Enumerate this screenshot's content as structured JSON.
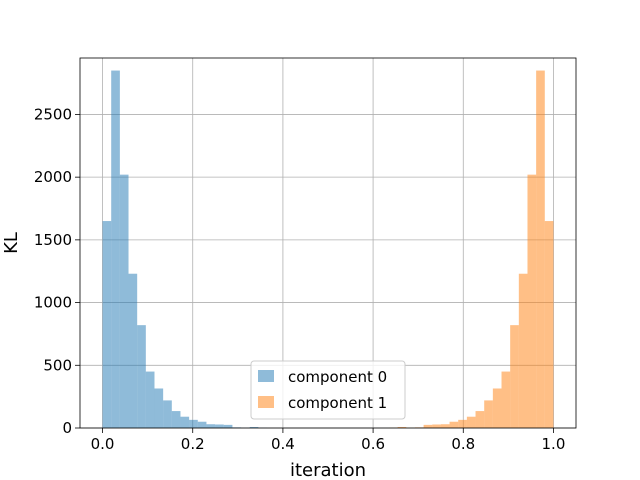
{
  "chart_data": {
    "type": "histogram",
    "xlabel": "iteration",
    "ylabel": "KL",
    "xlim": [
      -0.05,
      1.05
    ],
    "ylim": [
      0,
      2950
    ],
    "grid": true,
    "legend_position": "bottom-center",
    "bin_width": 0.0192,
    "xticks": [
      0.0,
      0.2,
      0.4,
      0.6,
      0.8,
      1.0
    ],
    "xtick_labels": [
      "0.0",
      "0.2",
      "0.4",
      "0.6",
      "0.8",
      "1.0"
    ],
    "yticks": [
      0,
      500,
      1000,
      1500,
      2000,
      2500
    ],
    "ytick_labels": [
      "0",
      "500",
      "1000",
      "1500",
      "2000",
      "2500"
    ],
    "series": [
      {
        "name": "component 0",
        "color": "#1f77b4",
        "alpha": 0.5,
        "bin_edges": [
          0.0,
          0.0192,
          0.0384,
          0.0576,
          0.0768,
          0.096,
          0.1152,
          0.1344,
          0.1536,
          0.1728,
          0.192,
          0.2112,
          0.2304,
          0.2496,
          0.2688,
          0.288,
          0.3072,
          0.3264,
          0.3456,
          0.3648
        ],
        "counts": [
          1650,
          2850,
          2020,
          1230,
          820,
          450,
          315,
          220,
          135,
          90,
          65,
          50,
          30,
          28,
          25,
          5,
          2,
          8,
          2
        ]
      },
      {
        "name": "component 1",
        "color": "#ff7f0e",
        "alpha": 0.5,
        "bin_edges": [
          0.6352,
          0.6544,
          0.6736,
          0.6928,
          0.712,
          0.7312,
          0.7504,
          0.7696,
          0.7888,
          0.808,
          0.8272,
          0.8464,
          0.8656,
          0.8848,
          0.904,
          0.9232,
          0.9424,
          0.9616,
          0.9808,
          1.0
        ],
        "counts": [
          2,
          8,
          2,
          5,
          25,
          28,
          30,
          50,
          65,
          90,
          135,
          220,
          315,
          450,
          820,
          1230,
          2020,
          2850,
          1650
        ]
      }
    ]
  }
}
